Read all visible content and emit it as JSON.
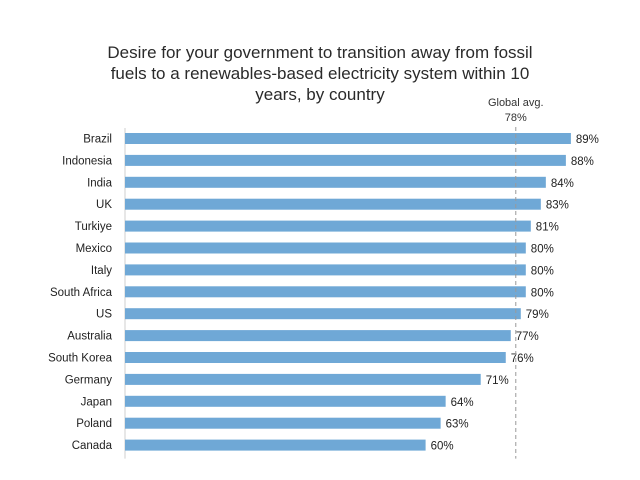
{
  "chart_data": {
    "type": "bar",
    "orientation": "horizontal",
    "title_lines": [
      "Desire for your government to transition away from fossil",
      "fuels to a renewables-based electricity system within 10",
      "years, by country"
    ],
    "categories": [
      "Brazil",
      "Indonesia",
      "India",
      "UK",
      "Turkiye",
      "Mexico",
      "Italy",
      "South Africa",
      "US",
      "Australia",
      "South Korea",
      "Germany",
      "Japan",
      "Poland",
      "Canada"
    ],
    "values": [
      89,
      88,
      84,
      83,
      81,
      80,
      80,
      80,
      79,
      77,
      76,
      71,
      64,
      63,
      60
    ],
    "value_labels": [
      "89%",
      "88%",
      "84%",
      "83%",
      "81%",
      "80%",
      "80%",
      "80%",
      "79%",
      "77%",
      "76%",
      "71%",
      "64%",
      "63%",
      "60%"
    ],
    "reference_line": {
      "value": 78,
      "label_lines": [
        "Global avg.",
        "78%"
      ]
    },
    "bar_color": "#6fa8d6",
    "grid": false,
    "legend": "none"
  }
}
